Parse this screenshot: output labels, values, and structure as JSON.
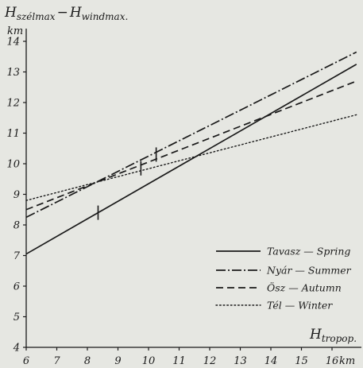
{
  "chart_data": {
    "type": "line",
    "title": {
      "prefix": "H",
      "sub1": "szélmax",
      "dash": "−",
      "prefix2": "H",
      "sub2": "windmax",
      "trail": "."
    },
    "ylabel_unit": "km",
    "xlabel": {
      "prefix": "H",
      "sub": "tropop."
    },
    "xlabel_unit": "km",
    "xlim": [
      6,
      16.8
    ],
    "ylim": [
      4,
      14.8
    ],
    "x_ticks": [
      6,
      7,
      8,
      9,
      10,
      11,
      12,
      13,
      14,
      15,
      16
    ],
    "y_ticks": [
      4,
      5,
      6,
      7,
      8,
      9,
      10,
      11,
      12,
      13,
      14
    ],
    "grid": false,
    "legend_position": "bottom-right",
    "series": [
      {
        "name": "Tavasz — Spring",
        "style": "solid",
        "color": "#1a1a1a",
        "points": [
          [
            6,
            7.05
          ],
          [
            16.8,
            13.25
          ]
        ],
        "markers": [
          [
            8.35,
            8.4
          ]
        ]
      },
      {
        "name": "Nyár — Summer",
        "style": "dashdot",
        "color": "#1a1a1a",
        "points": [
          [
            6,
            8.25
          ],
          [
            16.8,
            13.65
          ]
        ],
        "markers": [
          [
            9.75,
            9.85
          ],
          [
            10.25,
            10.3
          ]
        ]
      },
      {
        "name": "Ösz — Autumn",
        "style": "dashed",
        "color": "#1a1a1a",
        "points": [
          [
            6,
            8.5
          ],
          [
            16.8,
            12.7
          ]
        ],
        "markers": []
      },
      {
        "name": "Tél — Winter",
        "style": "dotted",
        "color": "#1a1a1a",
        "points": [
          [
            6,
            8.8
          ],
          [
            16.8,
            11.6
          ]
        ],
        "markers": []
      }
    ]
  }
}
